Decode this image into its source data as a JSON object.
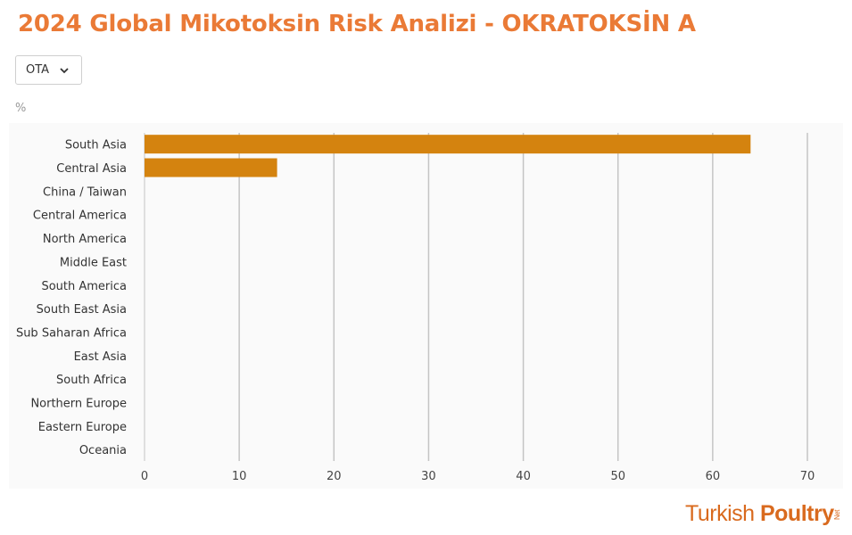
{
  "title": "2024 Global Mikotoksin Risk Analizi  - OKRATOKSİN A",
  "dropdown": {
    "selected": "OTA",
    "icon": "chevron-down-icon"
  },
  "unit_label": "%",
  "logo": {
    "part1": "Turkish ",
    "part2": "Poultry",
    "part3": "Net"
  },
  "colors": {
    "title": "#ea7a36",
    "bar": "#d4830f",
    "grid": "#c4c4c4"
  },
  "chart_data": {
    "type": "bar",
    "orientation": "horizontal",
    "categories": [
      "South Asia",
      "Central Asia",
      "China / Taiwan",
      "Central America",
      "North America",
      "Middle East",
      "South America",
      "South East Asia",
      "Sub Saharan Africa",
      "East Asia",
      "South Africa",
      "Northern Europe",
      "Eastern Europe",
      "Oceania"
    ],
    "values": [
      64,
      14,
      0,
      0,
      0,
      0,
      0,
      0,
      0,
      0,
      0,
      0,
      0,
      0
    ],
    "xlim": [
      0,
      70
    ],
    "xticks": [
      0,
      10,
      20,
      30,
      40,
      50,
      60,
      70
    ],
    "ylabel": "%",
    "grid": true,
    "legend": "none"
  }
}
